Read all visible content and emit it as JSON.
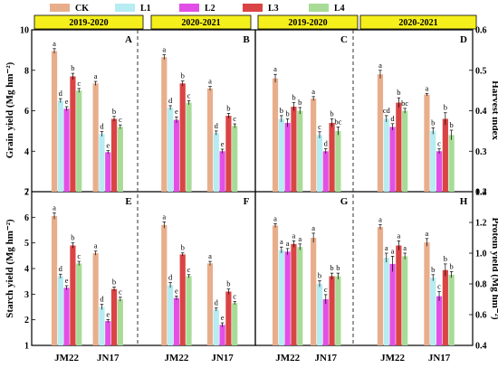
{
  "legend": [
    {
      "name": "CK",
      "color": "#e8ae8c"
    },
    {
      "name": "L1",
      "color": "#b6ecf2"
    },
    {
      "name": "L2",
      "color": "#e24fe6"
    },
    {
      "name": "L3",
      "color": "#da4444"
    },
    {
      "name": "L4",
      "color": "#a8dc96"
    }
  ],
  "season_labels": [
    "2019-2020",
    "2020-2021",
    "2019-2020",
    "2020-2021"
  ],
  "season_color": "#f5ef1c",
  "chart_data": [
    {
      "panel": "A",
      "type": "bar",
      "season": "2019-2020",
      "categories": [
        "JM22",
        "JN17"
      ],
      "ylim": [
        2,
        10
      ],
      "ylabel": "Grain yield (Mg hm⁻²)",
      "series": [
        {
          "name": "CK",
          "values": [
            8.95,
            7.35
          ],
          "err": [
            0.12,
            0.1
          ],
          "letters": [
            "a",
            "a"
          ]
        },
        {
          "name": "L1",
          "values": [
            6.5,
            4.85
          ],
          "err": [
            0.1,
            0.12
          ],
          "letters": [
            "d",
            "d"
          ]
        },
        {
          "name": "L2",
          "values": [
            6.1,
            3.95
          ],
          "err": [
            0.1,
            0.08
          ],
          "letters": [
            "e",
            "e"
          ]
        },
        {
          "name": "L3",
          "values": [
            7.7,
            5.6
          ],
          "err": [
            0.15,
            0.12
          ],
          "letters": [
            "b",
            "b"
          ]
        },
        {
          "name": "L4",
          "values": [
            7.0,
            5.2
          ],
          "err": [
            0.1,
            0.1
          ],
          "letters": [
            "c",
            "c"
          ]
        }
      ]
    },
    {
      "panel": "B",
      "type": "bar",
      "season": "2020-2021",
      "categories": [
        "JM22",
        "JN17"
      ],
      "ylim": [
        2,
        10
      ],
      "series": [
        {
          "name": "CK",
          "values": [
            8.65,
            7.1
          ],
          "err": [
            0.12,
            0.1
          ],
          "letters": [
            "a",
            "a"
          ]
        },
        {
          "name": "L1",
          "values": [
            6.15,
            4.9
          ],
          "err": [
            0.1,
            0.1
          ],
          "letters": [
            "d",
            "d"
          ]
        },
        {
          "name": "L2",
          "values": [
            5.55,
            4.0
          ],
          "err": [
            0.15,
            0.1
          ],
          "letters": [
            "e",
            "e"
          ]
        },
        {
          "name": "L3",
          "values": [
            7.35,
            5.75
          ],
          "err": [
            0.12,
            0.12
          ],
          "letters": [
            "b",
            "b"
          ]
        },
        {
          "name": "L4",
          "values": [
            6.4,
            5.25
          ],
          "err": [
            0.1,
            0.1
          ],
          "letters": [
            "c",
            "c"
          ]
        }
      ]
    },
    {
      "panel": "C",
      "type": "bar",
      "season": "2019-2020",
      "categories": [
        "JM22",
        "JN17"
      ],
      "ylim": [
        0.2,
        0.6
      ],
      "series": [
        {
          "name": "CK",
          "values": [
            0.48,
            0.43
          ],
          "err": [
            0.01,
            0.005
          ],
          "letters": [
            "a",
            "a"
          ]
        },
        {
          "name": "L1",
          "values": [
            0.38,
            0.34
          ],
          "err": [
            0.008,
            0.008
          ],
          "letters": [
            "b",
            "c"
          ]
        },
        {
          "name": "L2",
          "values": [
            0.37,
            0.3
          ],
          "err": [
            0.01,
            0.006
          ],
          "letters": [
            "b",
            "d"
          ]
        },
        {
          "name": "L3",
          "values": [
            0.41,
            0.37
          ],
          "err": [
            0.01,
            0.01
          ],
          "letters": [
            "b",
            "b"
          ]
        },
        {
          "name": "L4",
          "values": [
            0.4,
            0.35
          ],
          "err": [
            0.008,
            0.01
          ],
          "letters": [
            "b",
            "bc"
          ]
        }
      ]
    },
    {
      "panel": "D",
      "type": "bar",
      "season": "2020-2021",
      "categories": [
        "JM22",
        "JN17"
      ],
      "ylim": [
        0.2,
        0.6
      ],
      "ylabel": "Harvest index",
      "series": [
        {
          "name": "CK",
          "values": [
            0.49,
            0.44
          ],
          "err": [
            0.01,
            0.003
          ],
          "letters": [
            "a",
            "a"
          ]
        },
        {
          "name": "L1",
          "values": [
            0.38,
            0.35
          ],
          "err": [
            0.008,
            0.008
          ],
          "letters": [
            "cd",
            "b"
          ]
        },
        {
          "name": "L2",
          "values": [
            0.36,
            0.3
          ],
          "err": [
            0.008,
            0.006
          ],
          "letters": [
            "d",
            "c"
          ]
        },
        {
          "name": "L3",
          "values": [
            0.42,
            0.38
          ],
          "err": [
            0.012,
            0.015
          ],
          "letters": [
            "b",
            "b"
          ]
        },
        {
          "name": "L4",
          "values": [
            0.4,
            0.34
          ],
          "err": [
            0.006,
            0.012
          ],
          "letters": [
            "bc",
            "b"
          ]
        }
      ]
    },
    {
      "panel": "E",
      "type": "bar",
      "season": "2019-2020",
      "categories": [
        "JM22",
        "JN17"
      ],
      "ylim": [
        1,
        7
      ],
      "ylabel": "Starch yield (Mg hm⁻²)",
      "series": [
        {
          "name": "CK",
          "values": [
            6.05,
            4.6
          ],
          "err": [
            0.12,
            0.08
          ],
          "letters": [
            "a",
            "a"
          ]
        },
        {
          "name": "L1",
          "values": [
            3.7,
            2.5
          ],
          "err": [
            0.08,
            0.1
          ],
          "letters": [
            "d",
            "d"
          ]
        },
        {
          "name": "L2",
          "values": [
            3.25,
            1.95
          ],
          "err": [
            0.08,
            0.06
          ],
          "letters": [
            "e",
            "e"
          ]
        },
        {
          "name": "L3",
          "values": [
            4.9,
            3.2
          ],
          "err": [
            0.1,
            0.08
          ],
          "letters": [
            "b",
            "b"
          ]
        },
        {
          "name": "L4",
          "values": [
            4.2,
            2.8
          ],
          "err": [
            0.08,
            0.08
          ],
          "letters": [
            "c",
            "c"
          ]
        }
      ]
    },
    {
      "panel": "F",
      "type": "bar",
      "season": "2020-2021",
      "categories": [
        "JM22",
        "JN17"
      ],
      "ylim": [
        1,
        7
      ],
      "series": [
        {
          "name": "CK",
          "values": [
            5.7,
            4.2
          ],
          "err": [
            0.12,
            0.08
          ],
          "letters": [
            "a",
            "a"
          ]
        },
        {
          "name": "L1",
          "values": [
            3.35,
            2.4
          ],
          "err": [
            0.1,
            0.06
          ],
          "letters": [
            "d",
            "d"
          ]
        },
        {
          "name": "L2",
          "values": [
            2.85,
            1.8
          ],
          "err": [
            0.08,
            0.08
          ],
          "letters": [
            "e",
            "e"
          ]
        },
        {
          "name": "L3",
          "values": [
            4.55,
            3.1
          ],
          "err": [
            0.06,
            0.1
          ],
          "letters": [
            "b",
            "b"
          ]
        },
        {
          "name": "L4",
          "values": [
            3.7,
            2.65
          ],
          "err": [
            0.06,
            0.06
          ],
          "letters": [
            "c",
            "c"
          ]
        }
      ]
    },
    {
      "panel": "G",
      "type": "bar",
      "season": "2019-2020",
      "categories": [
        "JM22",
        "JN17"
      ],
      "ylim": [
        0.4,
        1.4
      ],
      "series": [
        {
          "name": "CK",
          "values": [
            1.18,
            1.1
          ],
          "err": [
            0.012,
            0.03
          ],
          "letters": [
            "a",
            "a"
          ]
        },
        {
          "name": "L1",
          "values": [
            1.02,
            0.8
          ],
          "err": [
            0.02,
            0.02
          ],
          "letters": [
            "a",
            "b"
          ]
        },
        {
          "name": "L2",
          "values": [
            1.01,
            0.7
          ],
          "err": [
            0.02,
            0.03
          ],
          "letters": [
            "a",
            "c"
          ]
        },
        {
          "name": "L3",
          "values": [
            1.06,
            0.85
          ],
          "err": [
            0.02,
            0.02
          ],
          "letters": [
            "a",
            "b"
          ]
        },
        {
          "name": "L4",
          "values": [
            1.04,
            0.85
          ],
          "err": [
            0.02,
            0.02
          ],
          "letters": [
            "a",
            "b"
          ]
        }
      ]
    },
    {
      "panel": "H",
      "type": "bar",
      "season": "2020-2021",
      "categories": [
        "JM22",
        "JN17"
      ],
      "ylim": [
        0.4,
        1.4
      ],
      "ylabel": "Protein yield (Mg hm⁻²)",
      "series": [
        {
          "name": "CK",
          "values": [
            1.17,
            1.07
          ],
          "err": [
            0.015,
            0.025
          ],
          "letters": [
            "a",
            "a"
          ]
        },
        {
          "name": "L1",
          "values": [
            0.97,
            0.84
          ],
          "err": [
            0.03,
            0.02
          ],
          "letters": [
            "a",
            "b"
          ]
        },
        {
          "name": "L2",
          "values": [
            0.93,
            0.72
          ],
          "err": [
            0.05,
            0.03
          ],
          "letters": [
            "a",
            "c"
          ]
        },
        {
          "name": "L3",
          "values": [
            1.05,
            0.89
          ],
          "err": [
            0.03,
            0.04
          ],
          "letters": [
            "a",
            "b"
          ]
        },
        {
          "name": "L4",
          "values": [
            0.98,
            0.86
          ],
          "err": [
            0.02,
            0.02
          ],
          "letters": [
            "a",
            "b"
          ]
        }
      ]
    }
  ]
}
